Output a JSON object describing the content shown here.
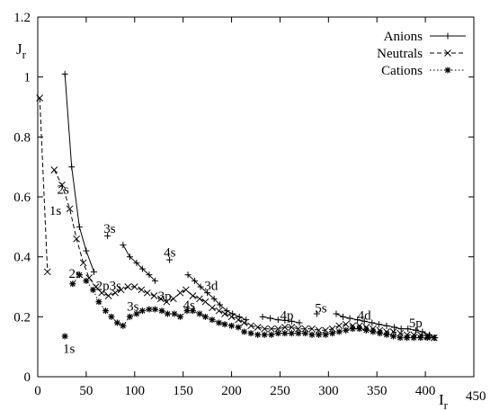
{
  "chart_data": {
    "type": "line",
    "title": "",
    "xlabel": "I",
    "xlabel_sub": "r",
    "ylabel": "J",
    "ylabel_sub": "r",
    "xlim": [
      0,
      450
    ],
    "ylim": [
      0,
      1.2
    ],
    "xticks": [
      0,
      50,
      100,
      150,
      200,
      250,
      300,
      350,
      400,
      450
    ],
    "yticks": [
      0,
      0.2,
      0.4,
      0.6,
      0.8,
      1,
      1.2
    ],
    "xtick_labels": [
      "0",
      "50",
      "100",
      "150",
      "200",
      "250",
      "300",
      "350",
      "400",
      "450"
    ],
    "ytick_labels": [
      "0",
      "0.2",
      "0.4",
      "0.6",
      "0.8",
      "1",
      "1.2"
    ],
    "grid": false,
    "legend_position": "top-right",
    "series": [
      {
        "name": "Anions",
        "line": "solid",
        "marker": "plus",
        "segments": [
          [
            [
              28,
              1.01
            ],
            [
              35,
              0.7
            ],
            [
              43,
              0.5
            ],
            [
              50,
              0.42
            ],
            [
              58,
              0.35
            ]
          ],
          [
            [
              88,
              0.44
            ],
            [
              95,
              0.4
            ],
            [
              102,
              0.38
            ],
            [
              108,
              0.36
            ],
            [
              115,
              0.34
            ],
            [
              121,
              0.32
            ]
          ],
          [
            [
              155,
              0.34
            ],
            [
              162,
              0.32
            ],
            [
              168,
              0.3
            ],
            [
              175,
              0.28
            ],
            [
              182,
              0.26
            ],
            [
              188,
              0.24
            ],
            [
              195,
              0.22
            ],
            [
              201,
              0.21
            ],
            [
              208,
              0.2
            ],
            [
              215,
              0.19
            ]
          ],
          [
            [
              232,
              0.2
            ],
            [
              240,
              0.195
            ],
            [
              248,
              0.19
            ],
            [
              255,
              0.188
            ],
            [
              262,
              0.185
            ],
            [
              270,
              0.18
            ]
          ],
          [
            [
              308,
              0.21
            ],
            [
              315,
              0.2
            ],
            [
              322,
              0.195
            ],
            [
              330,
              0.19
            ],
            [
              337,
              0.185
            ],
            [
              345,
              0.18
            ],
            [
              352,
              0.175
            ],
            [
              360,
              0.17
            ],
            [
              368,
              0.165
            ],
            [
              375,
              0.16
            ],
            [
              382,
              0.16
            ],
            [
              390,
              0.155
            ],
            [
              397,
              0.15
            ],
            [
              404,
              0.14
            ],
            [
              410,
              0.13
            ]
          ]
        ],
        "isolated": [
          [
            72,
            0.47
          ],
          [
            136,
            0.39
          ],
          [
            288,
            0.21
          ]
        ]
      },
      {
        "name": "Neutrals",
        "line": "dashed",
        "marker": "x",
        "segments": [
          [
            [
              2,
              0.93
            ],
            [
              10,
              0.35
            ]
          ],
          [
            [
              17,
              0.69
            ],
            [
              25,
              0.64
            ],
            [
              33,
              0.56
            ],
            [
              40,
              0.46
            ],
            [
              47,
              0.38
            ],
            [
              53,
              0.33
            ],
            [
              60,
              0.3
            ],
            [
              66,
              0.28
            ],
            [
              73,
              0.27
            ],
            [
              80,
              0.28
            ],
            [
              86,
              0.29
            ],
            [
              93,
              0.3
            ],
            [
              100,
              0.3
            ],
            [
              107,
              0.29
            ],
            [
              113,
              0.28
            ],
            [
              120,
              0.27
            ],
            [
              127,
              0.26
            ],
            [
              133,
              0.25
            ],
            [
              140,
              0.26
            ],
            [
              147,
              0.28
            ],
            [
              153,
              0.29
            ],
            [
              160,
              0.27
            ],
            [
              167,
              0.26
            ],
            [
              173,
              0.25
            ],
            [
              180,
              0.23
            ],
            [
              187,
              0.22
            ],
            [
              193,
              0.21
            ],
            [
              200,
              0.2
            ],
            [
              207,
              0.19
            ],
            [
              213,
              0.18
            ],
            [
              220,
              0.17
            ],
            [
              227,
              0.165
            ],
            [
              234,
              0.16
            ],
            [
              241,
              0.16
            ],
            [
              248,
              0.16
            ],
            [
              255,
              0.165
            ],
            [
              262,
              0.165
            ],
            [
              269,
              0.16
            ],
            [
              276,
              0.16
            ],
            [
              283,
              0.16
            ],
            [
              290,
              0.155
            ],
            [
              297,
              0.155
            ],
            [
              304,
              0.16
            ],
            [
              311,
              0.17
            ],
            [
              318,
              0.175
            ],
            [
              325,
              0.17
            ],
            [
              332,
              0.17
            ],
            [
              339,
              0.165
            ],
            [
              346,
              0.16
            ],
            [
              353,
              0.155
            ],
            [
              360,
              0.15
            ],
            [
              367,
              0.15
            ],
            [
              374,
              0.145
            ],
            [
              381,
              0.14
            ],
            [
              388,
              0.14
            ],
            [
              395,
              0.14
            ],
            [
              402,
              0.135
            ],
            [
              409,
              0.13
            ]
          ]
        ],
        "isolated": []
      },
      {
        "name": "Cations",
        "line": "dotted",
        "marker": "star",
        "segments": [
          [
            [
              36,
              0.31
            ],
            [
              43,
              0.34
            ],
            [
              50,
              0.32
            ],
            [
              57,
              0.29
            ],
            [
              63,
              0.25
            ],
            [
              70,
              0.22
            ],
            [
              76,
              0.2
            ],
            [
              82,
              0.18
            ],
            [
              88,
              0.17
            ],
            [
              95,
              0.2
            ],
            [
              102,
              0.21
            ],
            [
              108,
              0.22
            ],
            [
              115,
              0.225
            ],
            [
              121,
              0.225
            ],
            [
              128,
              0.22
            ],
            [
              134,
              0.21
            ],
            [
              141,
              0.21
            ],
            [
              147,
              0.2
            ],
            [
              154,
              0.22
            ],
            [
              160,
              0.22
            ],
            [
              167,
              0.21
            ],
            [
              173,
              0.2
            ],
            [
              180,
              0.19
            ],
            [
              187,
              0.18
            ],
            [
              193,
              0.175
            ],
            [
              200,
              0.17
            ],
            [
              207,
              0.165
            ],
            [
              213,
              0.15
            ],
            [
              220,
              0.145
            ],
            [
              227,
              0.14
            ],
            [
              234,
              0.14
            ],
            [
              241,
              0.14
            ],
            [
              248,
              0.145
            ],
            [
              255,
              0.145
            ],
            [
              262,
              0.145
            ],
            [
              269,
              0.145
            ],
            [
              276,
              0.145
            ],
            [
              283,
              0.14
            ],
            [
              290,
              0.14
            ],
            [
              297,
              0.14
            ],
            [
              304,
              0.145
            ],
            [
              311,
              0.15
            ],
            [
              318,
              0.155
            ],
            [
              325,
              0.16
            ],
            [
              332,
              0.16
            ],
            [
              339,
              0.155
            ],
            [
              346,
              0.15
            ],
            [
              353,
              0.145
            ],
            [
              360,
              0.14
            ],
            [
              367,
              0.135
            ],
            [
              374,
              0.13
            ],
            [
              381,
              0.13
            ],
            [
              388,
              0.13
            ],
            [
              395,
              0.13
            ],
            [
              402,
              0.13
            ],
            [
              409,
              0.13
            ]
          ]
        ],
        "isolated": [
          [
            28,
            0.135
          ]
        ]
      }
    ],
    "annotations": [
      {
        "text": "2s",
        "x": 20,
        "y": 0.61
      },
      {
        "text": "1s",
        "x": 12,
        "y": 0.54
      },
      {
        "text": "3s",
        "x": 68,
        "y": 0.48
      },
      {
        "text": "4s",
        "x": 130,
        "y": 0.4
      },
      {
        "text": "2s",
        "x": 32,
        "y": 0.33
      },
      {
        "text": "2p3s",
        "x": 60,
        "y": 0.29
      },
      {
        "text": "3d",
        "x": 172,
        "y": 0.29
      },
      {
        "text": "3p",
        "x": 124,
        "y": 0.255
      },
      {
        "text": "3s",
        "x": 92,
        "y": 0.22
      },
      {
        "text": "4s",
        "x": 150,
        "y": 0.225
      },
      {
        "text": "4p",
        "x": 250,
        "y": 0.19
      },
      {
        "text": "5s",
        "x": 286,
        "y": 0.215
      },
      {
        "text": "4d",
        "x": 330,
        "y": 0.19
      },
      {
        "text": "5p",
        "x": 383,
        "y": 0.165
      },
      {
        "text": "1s",
        "x": 26,
        "y": 0.08
      }
    ]
  }
}
